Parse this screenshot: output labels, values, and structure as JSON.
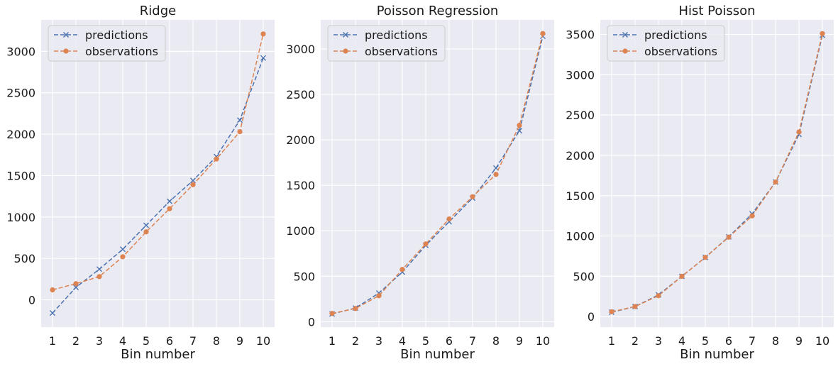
{
  "chart_data": [
    {
      "type": "line",
      "title": "Ridge",
      "xlabel": "Bin number",
      "ylabel": "",
      "x": [
        1,
        2,
        3,
        4,
        5,
        6,
        7,
        8,
        9,
        10
      ],
      "ylim": [
        -330,
        3380
      ],
      "yticks": [
        0,
        500,
        1000,
        1500,
        2000,
        2500,
        3000
      ],
      "legend_position": "upper-left",
      "series": [
        {
          "name": "predictions",
          "color": "#4c72b0",
          "marker": "x",
          "linestyle": "dashed",
          "values": [
            -160,
            150,
            370,
            610,
            900,
            1190,
            1440,
            1730,
            2170,
            2920
          ]
        },
        {
          "name": "observations",
          "color": "#dd8452",
          "marker": "circle",
          "linestyle": "dashed",
          "values": [
            120,
            195,
            280,
            520,
            820,
            1100,
            1390,
            1700,
            2030,
            3210
          ]
        }
      ]
    },
    {
      "type": "line",
      "title": "Poisson Regression",
      "xlabel": "Bin number",
      "ylabel": "",
      "x": [
        1,
        2,
        3,
        4,
        5,
        6,
        7,
        8,
        9,
        10
      ],
      "ylim": [
        -60,
        3320
      ],
      "yticks": [
        0,
        500,
        1000,
        1500,
        2000,
        2500,
        3000
      ],
      "legend_position": "upper-left",
      "series": [
        {
          "name": "predictions",
          "color": "#4c72b0",
          "marker": "x",
          "linestyle": "dashed",
          "values": [
            85,
            150,
            315,
            545,
            840,
            1100,
            1360,
            1690,
            2100,
            3140
          ]
        },
        {
          "name": "observations",
          "color": "#dd8452",
          "marker": "circle",
          "linestyle": "dashed",
          "values": [
            90,
            145,
            285,
            575,
            855,
            1130,
            1375,
            1620,
            2160,
            3170
          ]
        }
      ]
    },
    {
      "type": "line",
      "title": "Hist Poisson",
      "xlabel": "Bin number",
      "ylabel": "",
      "x": [
        1,
        2,
        3,
        4,
        5,
        6,
        7,
        8,
        9,
        10
      ],
      "ylim": [
        -130,
        3680
      ],
      "yticks": [
        0,
        500,
        1000,
        1500,
        2000,
        2500,
        3000,
        3500
      ],
      "legend_position": "upper-left",
      "series": [
        {
          "name": "predictions",
          "color": "#4c72b0",
          "marker": "x",
          "linestyle": "dashed",
          "values": [
            55,
            125,
            270,
            500,
            735,
            990,
            1275,
            1670,
            2260,
            3490
          ]
        },
        {
          "name": "observations",
          "color": "#dd8452",
          "marker": "circle",
          "linestyle": "dashed",
          "values": [
            60,
            125,
            260,
            500,
            735,
            985,
            1250,
            1670,
            2290,
            3510
          ]
        }
      ]
    }
  ]
}
